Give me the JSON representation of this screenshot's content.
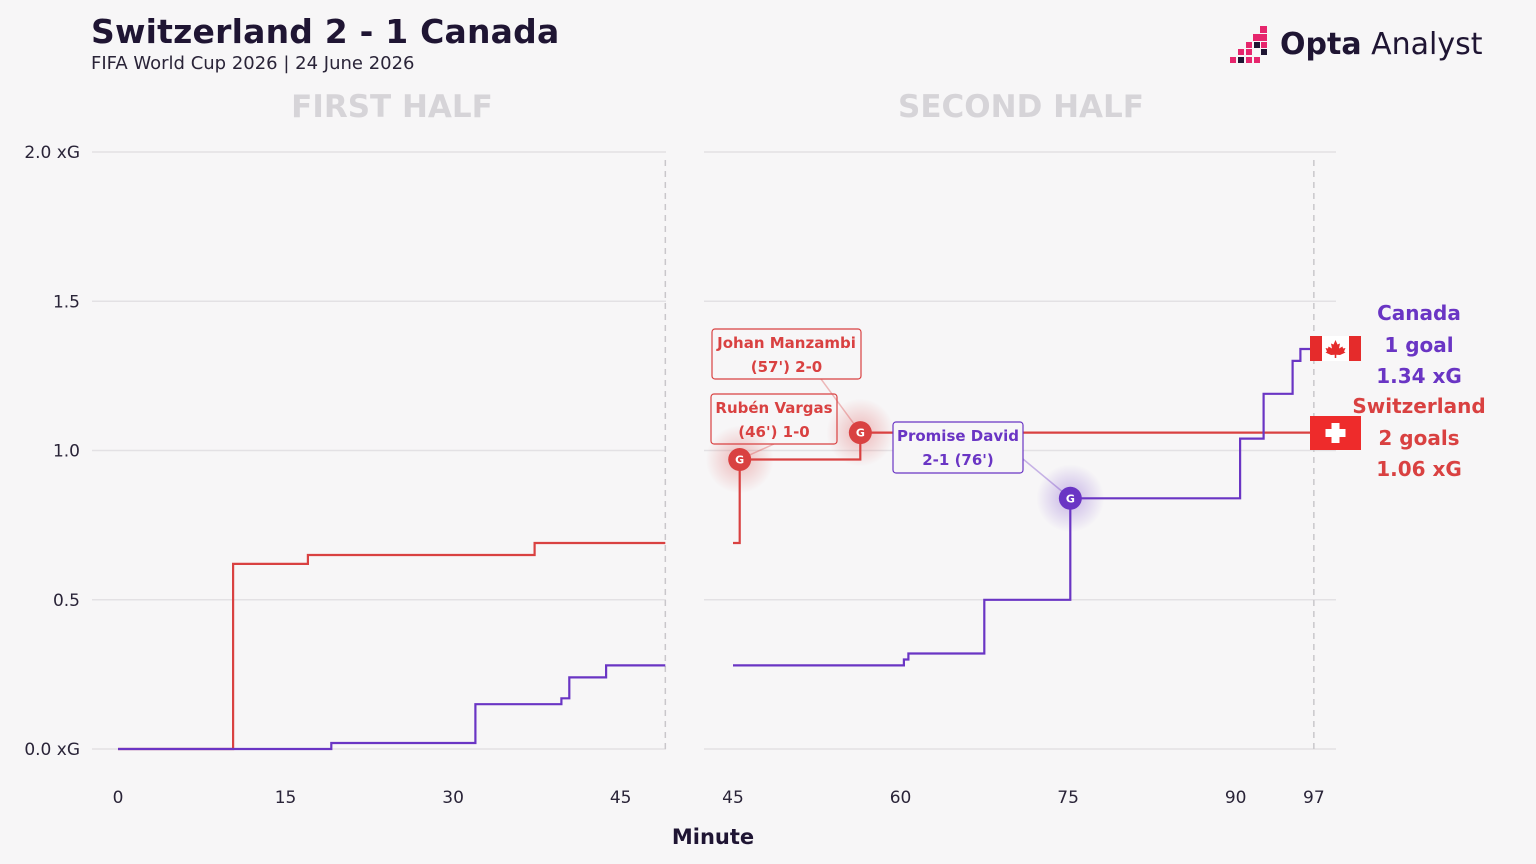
{
  "header": {
    "title": "Switzerland 2 - 1 Canada",
    "subtitle": "FIFA World Cup 2026 | 24 June 2026",
    "brand_bold": "Opta",
    "brand_light": " Analyst"
  },
  "colors": {
    "switzerland": "#d94141",
    "canada": "#6a35c4",
    "grid": "#e3e1e4",
    "half_title": "#d6d4d8",
    "brand_pink": "#e6266d",
    "brand_dark": "#1f1533"
  },
  "chart_data": {
    "type": "line",
    "step": true,
    "ylim": [
      0,
      2.0
    ],
    "yticks": [
      "0.0 xG",
      "0.5",
      "1.0",
      "1.5",
      "2.0 xG"
    ],
    "ytick_values": [
      0,
      0.5,
      1.0,
      1.5,
      2.0
    ],
    "xlabel": "Minute",
    "grid": true,
    "panels": [
      {
        "title": "FIRST HALF",
        "xlim": [
          0,
          49
        ],
        "xticks": [
          0,
          15,
          30,
          45
        ],
        "end_marker": 49,
        "series": [
          {
            "name": "Switzerland",
            "points": [
              [
                0,
                0
              ],
              [
                10.3,
                0
              ],
              [
                10.3,
                0.62
              ],
              [
                17,
                0.62
              ],
              [
                17,
                0.65
              ],
              [
                37.3,
                0.65
              ],
              [
                37.3,
                0.69
              ],
              [
                49,
                0.69
              ]
            ]
          },
          {
            "name": "Canada",
            "points": [
              [
                0,
                0
              ],
              [
                19.1,
                0
              ],
              [
                19.1,
                0.02
              ],
              [
                32,
                0.02
              ],
              [
                32,
                0.15
              ],
              [
                39.7,
                0.15
              ],
              [
                39.7,
                0.17
              ],
              [
                40.4,
                0.17
              ],
              [
                40.4,
                0.24
              ],
              [
                43.7,
                0.24
              ],
              [
                43.7,
                0.28
              ],
              [
                49,
                0.28
              ]
            ]
          }
        ]
      },
      {
        "title": "SECOND HALF",
        "xlim": [
          45,
          98.5
        ],
        "xticks": [
          45,
          60,
          75,
          90,
          97
        ],
        "end_marker": 97,
        "series": [
          {
            "name": "Switzerland",
            "points": [
              [
                45,
                0.69
              ],
              [
                45.6,
                0.69
              ],
              [
                45.6,
                0.97
              ],
              [
                56.4,
                0.97
              ],
              [
                56.4,
                1.06
              ],
              [
                97,
                1.06
              ]
            ]
          },
          {
            "name": "Canada",
            "points": [
              [
                45,
                0.28
              ],
              [
                60.3,
                0.28
              ],
              [
                60.3,
                0.3
              ],
              [
                60.7,
                0.3
              ],
              [
                60.7,
                0.32
              ],
              [
                67.5,
                0.32
              ],
              [
                67.5,
                0.5
              ],
              [
                75.2,
                0.5
              ],
              [
                75.2,
                0.84
              ],
              [
                90.4,
                0.84
              ],
              [
                90.4,
                1.04
              ],
              [
                92.5,
                1.04
              ],
              [
                92.5,
                1.19
              ],
              [
                95.1,
                1.19
              ],
              [
                95.1,
                1.3
              ],
              [
                95.8,
                1.3
              ],
              [
                95.8,
                1.34
              ],
              [
                97,
                1.34
              ]
            ]
          }
        ]
      }
    ],
    "goals": [
      {
        "team": "Switzerland",
        "minute": 45.6,
        "xg": 0.97,
        "marker": "G",
        "label_line1": "Rubén Vargas",
        "label_line2": "(46') 1-0"
      },
      {
        "team": "Switzerland",
        "minute": 56.4,
        "xg": 1.06,
        "marker": "G",
        "label_line1": "Johan Manzambi",
        "label_line2": "(57') 2-0"
      },
      {
        "team": "Canada",
        "minute": 75.2,
        "xg": 0.84,
        "marker": "G",
        "label_line1": "Promise David",
        "label_line2": "2-1 (76')"
      }
    ],
    "team_summary": [
      {
        "team": "Canada",
        "goals": "1 goal",
        "xg": "1.34 xG",
        "flag": "canada-flag"
      },
      {
        "team": "Switzerland",
        "goals": "2 goals",
        "xg": "1.06 xG",
        "flag": "switzerland-flag"
      }
    ]
  }
}
